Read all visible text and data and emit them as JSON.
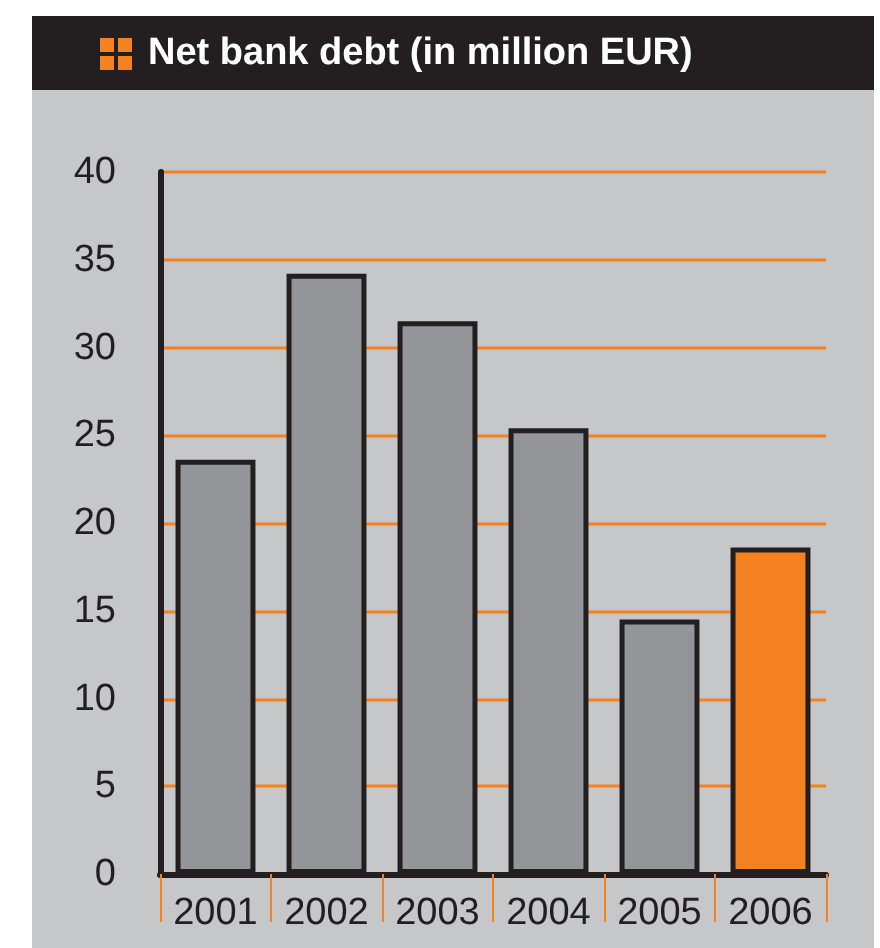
{
  "chart_data": {
    "type": "bar",
    "title": "Net bank debt (in million EUR)",
    "categories": [
      "2001",
      "2002",
      "2003",
      "2004",
      "2005",
      "2006"
    ],
    "values": [
      23.6,
      34.2,
      31.5,
      25.4,
      14.5,
      18.6
    ],
    "colors": [
      "#939598",
      "#939598",
      "#939598",
      "#939598",
      "#939598",
      "#f58220"
    ],
    "ylim": [
      0,
      40
    ],
    "yticks": [
      0,
      5,
      10,
      15,
      20,
      25,
      30,
      35,
      40
    ],
    "grid": "y"
  }
}
